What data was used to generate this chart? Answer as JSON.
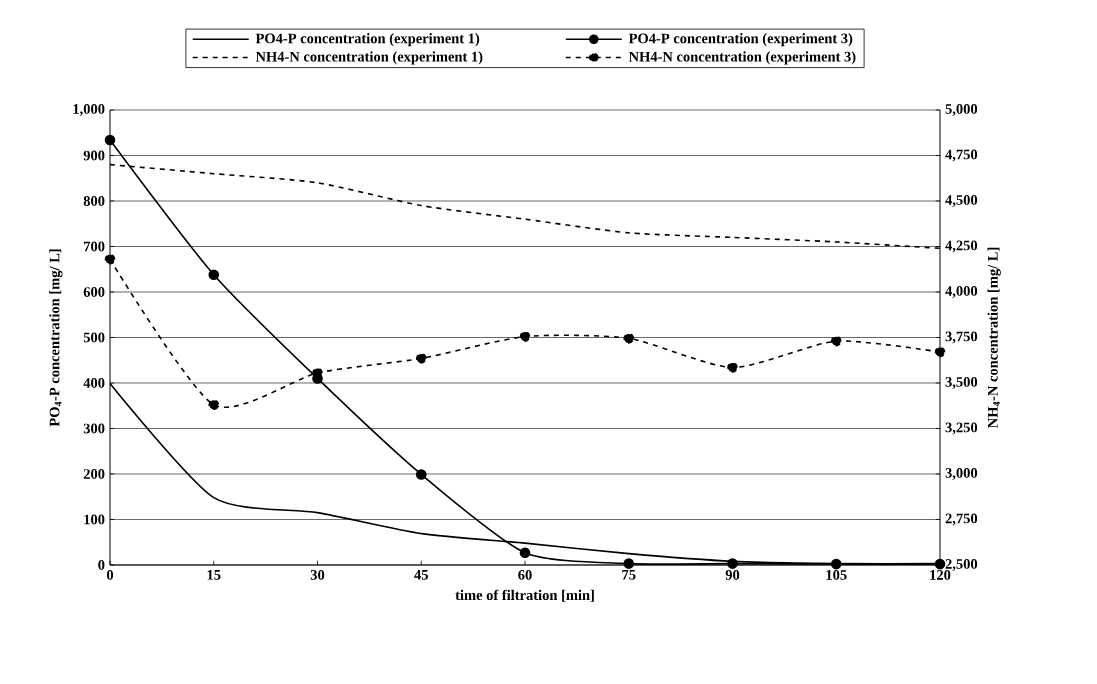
{
  "chart_data": {
    "type": "line",
    "xlabel": "time of filtration [min]",
    "ylabel": "PO$_{4}$-P concentration [mg/ L]",
    "y2label": "NH$_{4}$-N concentration [mg/ L]",
    "x": [
      0,
      15,
      30,
      45,
      60,
      75,
      90,
      105,
      120
    ],
    "series": [
      {
        "name": "PO4-P concentration (experiment 1)",
        "color": "#000000",
        "marker": "none",
        "line_style": "solid",
        "values": [
          399,
          148,
          115,
          69,
          48,
          25,
          8,
          3,
          3
        ]
      },
      {
        "name": "PO4-P concentration (experiment 3)",
        "color": "#000000",
        "marker": "circle",
        "line_style": "solid",
        "values": [
          934,
          638,
          410,
          199,
          27,
          3,
          3,
          2,
          2
        ]
      },
      {
        "name": "NH4-N concentration (experiment 1)",
        "color": "#000000",
        "marker": "none",
        "line_style": "dashed",
        "axis": "y2",
        "values": [
          4700,
          4650,
          4600,
          4475,
          4400,
          4325,
          4300,
          4275,
          4240
        ]
      },
      {
        "name": "NH4-N concentration (experiment 3)",
        "color": "#000000",
        "marker": "circle",
        "line_style": "dashed",
        "axis": "y2",
        "values": [
          4180,
          3380,
          3555,
          3635,
          3755,
          3745,
          3585,
          3730,
          3670
        ]
      }
    ],
    "xlim": [
      0,
      120
    ],
    "xticks": [
      0,
      15,
      30,
      45,
      60,
      75,
      90,
      105,
      120
    ],
    "ylim": [
      0,
      1000
    ],
    "yticks": [
      0,
      100,
      200,
      300,
      400,
      500,
      600,
      700,
      800,
      900,
      {
        "value": 1000,
        "label": "1,000"
      }
    ],
    "y2lim": [
      2500,
      5000
    ],
    "y2ticks": [
      {
        "value": 2500,
        "label": "2,500"
      },
      {
        "value": 2750,
        "label": "2,750"
      },
      {
        "value": 3000,
        "label": "3,000"
      },
      {
        "value": 3250,
        "label": "3,250"
      },
      {
        "value": 3500,
        "label": "3,500"
      },
      {
        "value": 3750,
        "label": "3,750"
      },
      {
        "value": 4000,
        "label": "4,000"
      },
      {
        "value": 4250,
        "label": "4,250"
      },
      {
        "value": 4500,
        "label": "4,500"
      },
      {
        "value": 4750,
        "label": "4,750"
      },
      {
        "value": 5000,
        "label": "5,000"
      }
    ],
    "grid": "y",
    "legend": "top"
  }
}
